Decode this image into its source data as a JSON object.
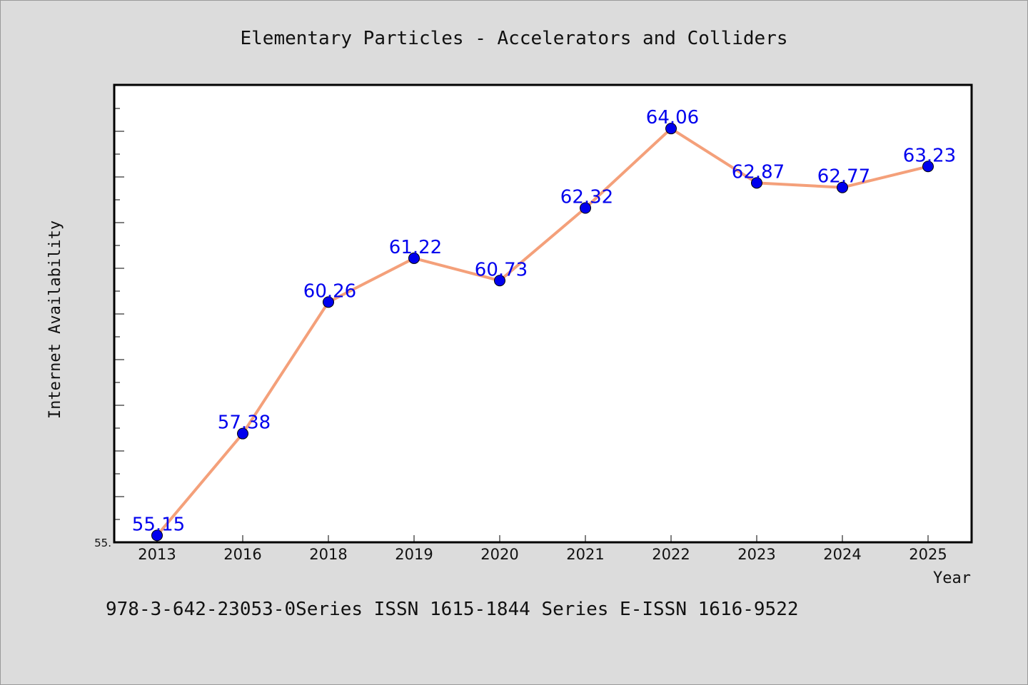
{
  "chart_data": {
    "type": "line",
    "title": "Elementary Particles - Accelerators and Colliders",
    "xlabel": "Year",
    "ylabel": "Internet Availability",
    "categories": [
      "2013",
      "2016",
      "2018",
      "2019",
      "2020",
      "2021",
      "2022",
      "2023",
      "2024",
      "2025"
    ],
    "series": [
      {
        "values": [
          55.15,
          57.38,
          60.26,
          61.22,
          60.73,
          62.32,
          64.06,
          62.87,
          62.77,
          63.23
        ],
        "color": "#f4a07a",
        "marker_color": "#0000ee"
      }
    ],
    "data_labels": [
      "55.15",
      "57.38",
      "60.26",
      "61.22",
      "60.73",
      "62.32",
      "64.06",
      "62.87",
      "62.77",
      "63.23"
    ],
    "ylim": [
      55.0,
      65.0
    ],
    "y_tick_labels": [
      "55."
    ],
    "grid": false,
    "legend": "none",
    "label_color": "#0000ee",
    "plot_background": "#ffffff",
    "page_background": "#dcdcdc"
  },
  "footer": {
    "text": "978-3-642-23053-0Series ISSN 1615-1844 Series E-ISSN 1616-9522"
  }
}
